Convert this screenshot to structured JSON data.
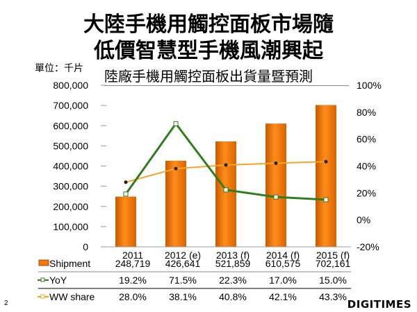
{
  "title_lines": [
    "大陸手機用觸控面板市場隨",
    "低價智慧型手機風潮興起"
  ],
  "unit_label": "單位：千片",
  "page_number": "2",
  "logo": "DIGITIMES",
  "colors": {
    "bar": "#f07a10",
    "yoy": "#2e7d1e",
    "share": "#f7a326"
  },
  "chart_data": {
    "type": "bar+line",
    "title": "陸廠手機用觸控面板出貨量暨預測",
    "categories": [
      "2011",
      "2012 (e)",
      "2013 (f)",
      "2014 (f)",
      "2015 (f)"
    ],
    "left_axis": {
      "ylim": [
        0,
        800000
      ],
      "ticks": [
        "0",
        "100,000",
        "200,000",
        "300,000",
        "400,000",
        "500,000",
        "600,000",
        "700,000",
        "800,000"
      ]
    },
    "right_axis": {
      "ylim": [
        -20,
        100
      ],
      "ticks": [
        "-20%",
        "0%",
        "20%",
        "40%",
        "60%",
        "80%",
        "100%"
      ]
    },
    "series": [
      {
        "name": "Shipment",
        "type": "bar",
        "values": [
          248719,
          426641,
          521859,
          610575,
          702161
        ],
        "labels": [
          "248,719",
          "426,641",
          "521,859",
          "610,575",
          "702,161"
        ]
      },
      {
        "name": "YoY",
        "type": "line",
        "axis": "right",
        "values": [
          19.2,
          71.5,
          22.3,
          17.0,
          15.0
        ],
        "labels": [
          "19.2%",
          "71.5%",
          "22.3%",
          "17.0%",
          "15.0%"
        ]
      },
      {
        "name": "WW share",
        "type": "line",
        "axis": "right",
        "values": [
          28.0,
          38.1,
          40.8,
          42.1,
          43.3
        ],
        "labels": [
          "28.0%",
          "38.1%",
          "40.8%",
          "42.1%",
          "43.3%"
        ]
      }
    ]
  }
}
